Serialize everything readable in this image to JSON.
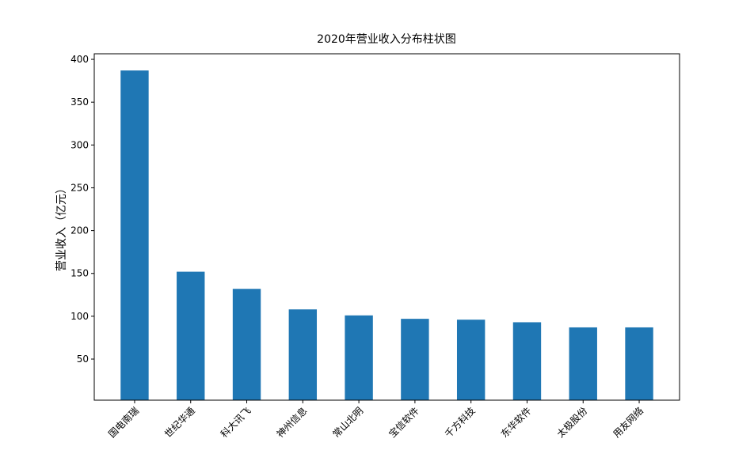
{
  "chart_data": {
    "type": "bar",
    "title": "2020年营业收入分布柱状图",
    "y_label": "营业收入（亿元）",
    "categories": [
      "国电南瑞",
      "世纪华通",
      "科大讯飞",
      "神州信息",
      "常山北明",
      "宝信软件",
      "千方科技",
      "东华软件",
      "太极股份",
      "用友网络"
    ],
    "values": [
      387,
      152,
      132,
      108,
      101,
      97,
      96,
      93,
      87,
      87
    ],
    "color": "#1f77b4",
    "ylim": [
      2,
      406.5
    ],
    "yticks": [
      50,
      100,
      150,
      200,
      250,
      300,
      350,
      400
    ],
    "grid": false
  }
}
